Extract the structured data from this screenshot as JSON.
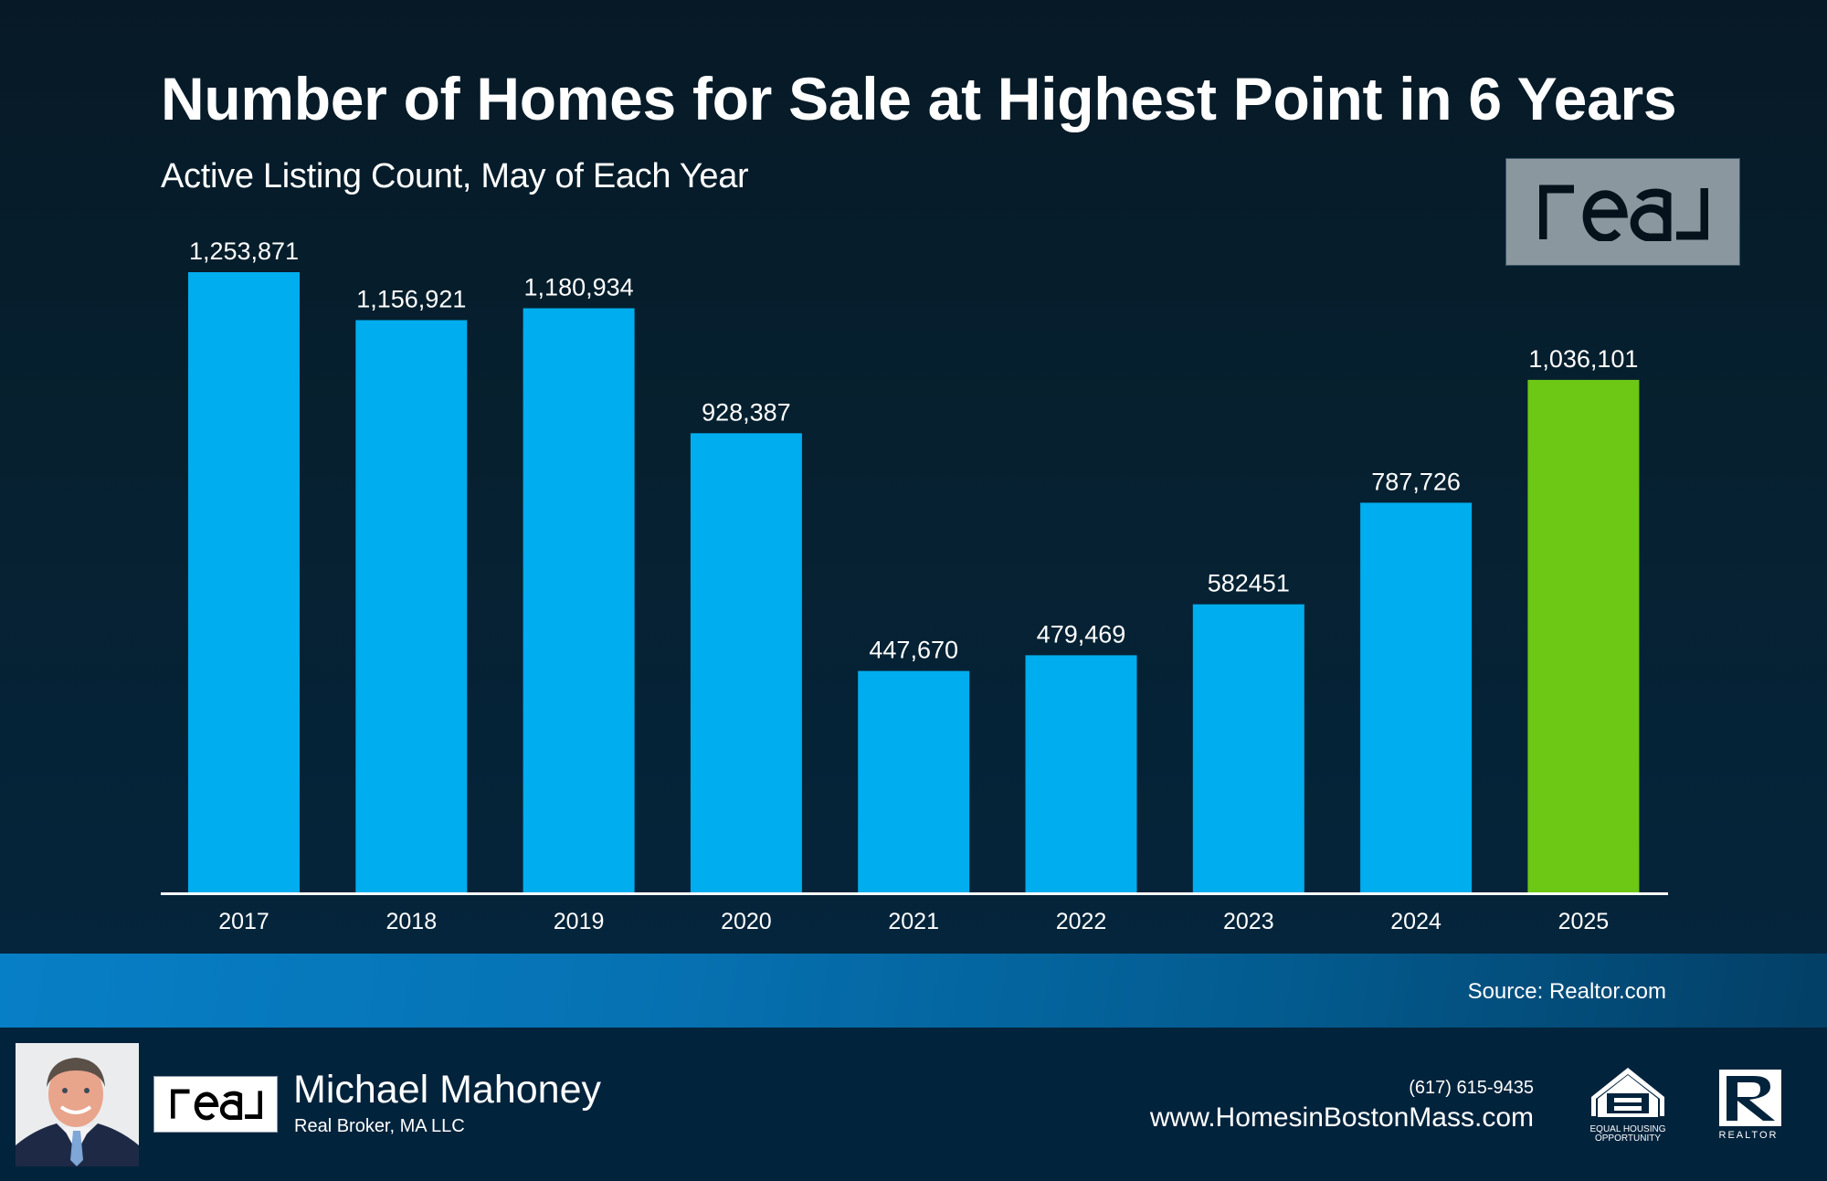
{
  "header": {
    "title": "Number of Homes for Sale at Highest Point in 6 Years",
    "subtitle": "Active Listing Count, May of Each Year",
    "logo_text": "real"
  },
  "chart_data": {
    "type": "bar",
    "title": "Number of Homes for Sale at Highest Point in 6 Years",
    "subtitle": "Active Listing Count, May of Each Year",
    "xlabel": "",
    "ylabel": "",
    "categories": [
      "2017",
      "2018",
      "2019",
      "2020",
      "2021",
      "2022",
      "2023",
      "2024",
      "2025"
    ],
    "values": [
      1253871,
      1156921,
      1180934,
      928387,
      447670,
      479469,
      582451,
      787726,
      1036101
    ],
    "value_labels": [
      "1,253,871",
      "1,156,921",
      "1,180,934",
      "928,387",
      "447,670",
      "479,469",
      "582451",
      "787,726",
      "1,036,101"
    ],
    "ylim": [
      0,
      1800000
    ],
    "grid": false,
    "legend": "none",
    "colors": {
      "default": "#00adee",
      "highlight": "#6cc814",
      "highlight_category": "2025"
    }
  },
  "source": {
    "text": "Source: Realtor.com"
  },
  "footer": {
    "agent_name": "Michael Mahoney",
    "broker": "Real Broker, MA LLC",
    "logo_text": "real",
    "phone": "(617) 615-9435",
    "website": "www.HomesinBostonMass.com",
    "eho_label_line1": "EQUAL HOUSING",
    "eho_label_line2": "OPPORTUNITY",
    "realtor_label": "REALTOR",
    "icons": {
      "photo": "agent-photo",
      "eho": "equal-housing-opportunity-icon",
      "realtor": "realtor-r-icon"
    }
  },
  "colors": {
    "background_top": "#071926",
    "background_bottom": "#042741",
    "bar": "#00adee",
    "bar_highlight": "#6cc814",
    "source_band": "#0672b3",
    "footer": "#02233c",
    "logo_box": "#8a979e"
  }
}
